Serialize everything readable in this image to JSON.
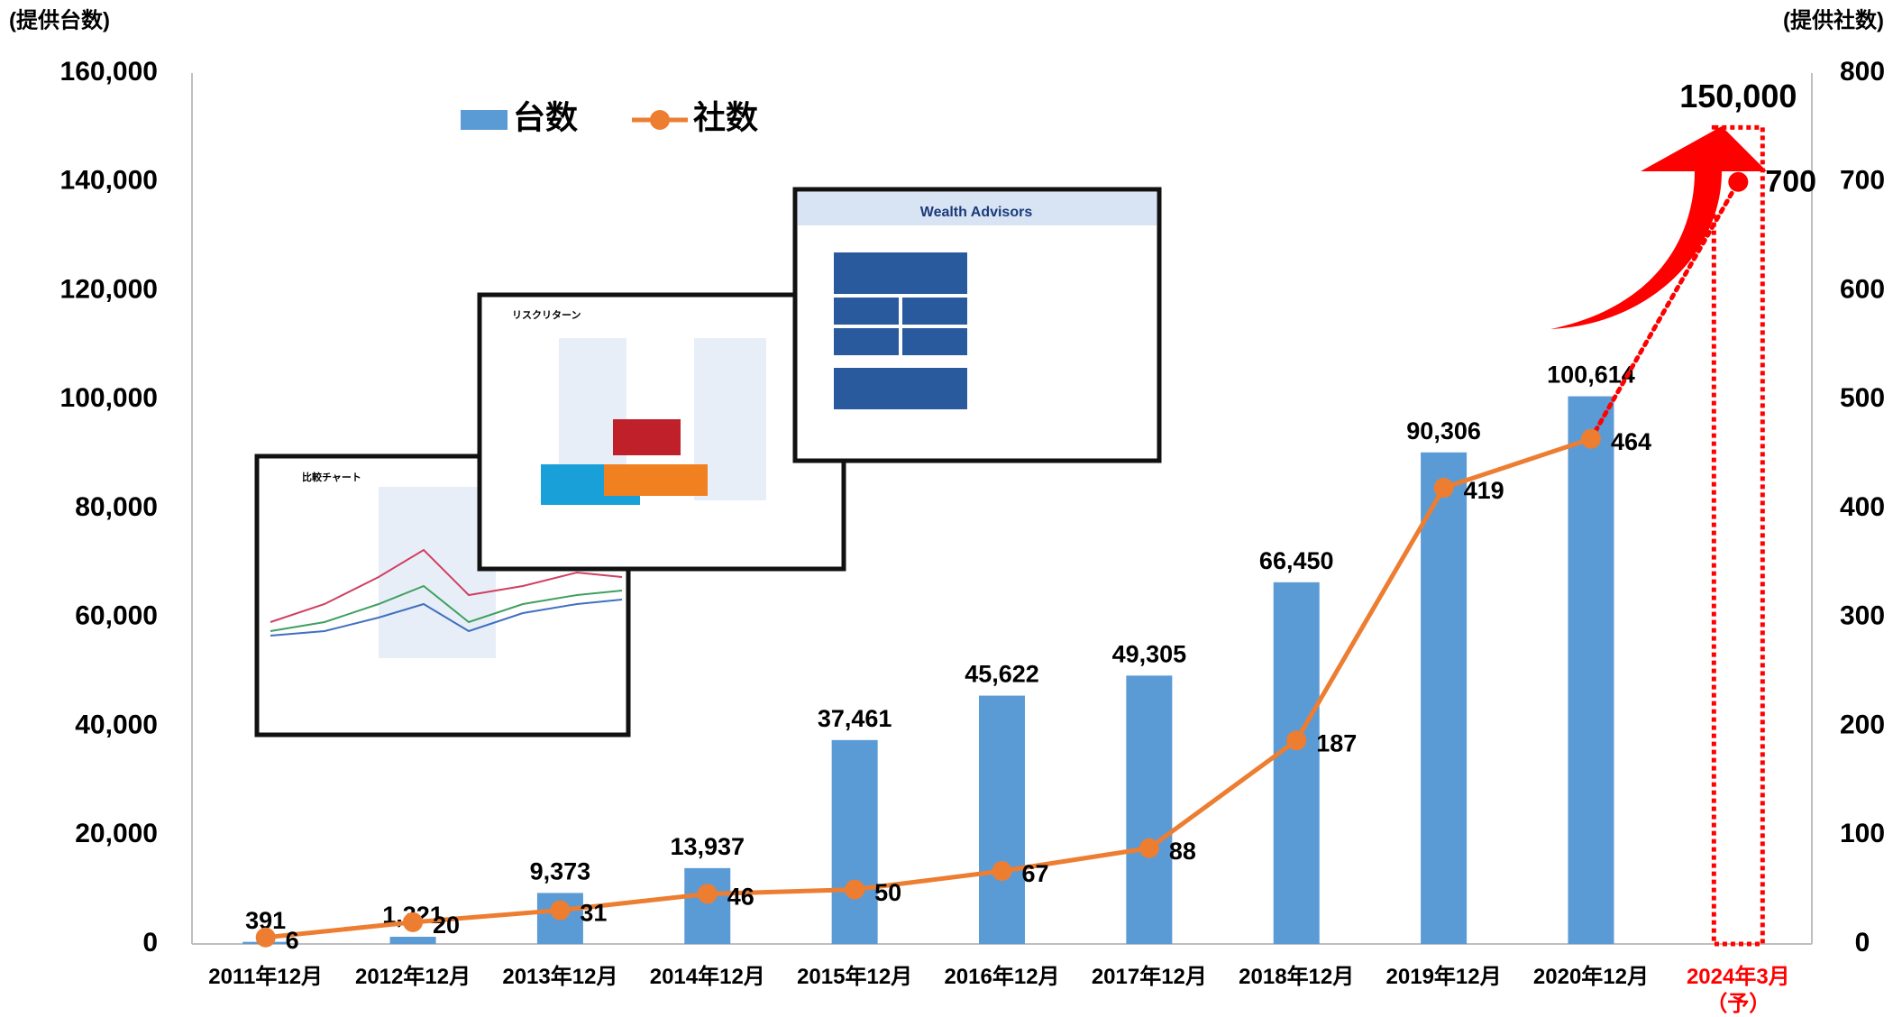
{
  "chart_data": {
    "type": "bar-line",
    "y_label": "(提供台数)",
    "y2_label": "(提供社数)",
    "categories": [
      "2011年12月",
      "2012年12月",
      "2013年12月",
      "2014年12月",
      "2015年12月",
      "2016年12月",
      "2017年12月",
      "2018年12月",
      "2019年12月",
      "2020年12月",
      "2024年3月（予）"
    ],
    "series": [
      {
        "name": "台数",
        "type": "bar",
        "color": "#5b9bd5",
        "axis": "y",
        "values": [
          391,
          1321,
          9373,
          13937,
          37461,
          45622,
          49305,
          66450,
          90306,
          100614,
          150000
        ],
        "value_labels": [
          "391",
          "1,321",
          "9,373",
          "13,937",
          "37,461",
          "45,622",
          "49,305",
          "66,450",
          "90,306",
          "100,614",
          "150,000"
        ]
      },
      {
        "name": "社数",
        "type": "line",
        "color": "#ed7d31",
        "axis": "y2",
        "values": [
          6,
          20,
          31,
          46,
          50,
          67,
          88,
          187,
          419,
          464,
          700
        ]
      }
    ],
    "highlight_color": "#ff0000",
    "ylim": [
      0,
      160000
    ],
    "yticks": [
      0,
      {
        "value": 20000,
        "label": "20,000"
      },
      {
        "value": 40000,
        "label": "40,000"
      },
      {
        "value": 60000,
        "label": "60,000"
      },
      {
        "value": 80000,
        "label": "80,000"
      },
      {
        "value": 100000,
        "label": "100,000"
      },
      {
        "value": 120000,
        "label": "120,000"
      },
      {
        "value": 140000,
        "label": "140,000"
      },
      {
        "value": 160000,
        "label": "160,000"
      }
    ],
    "y2lim": [
      0,
      800
    ],
    "y2ticks": [
      0,
      100,
      200,
      300,
      400,
      500,
      600,
      700,
      800
    ],
    "legend": "top-left"
  },
  "insets": [
    {
      "title": "比較チャート"
    },
    {
      "title": "リスクリターン"
    },
    {
      "title": "Wealth Advisors"
    }
  ]
}
